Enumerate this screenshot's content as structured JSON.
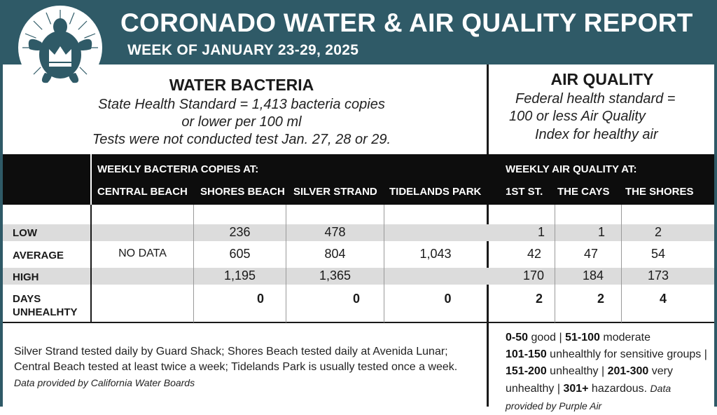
{
  "header": {
    "title": "CORONADO WATER & AIR QUALITY REPORT",
    "subtitle": "WEEK OF JANUARY 23-29, 2025",
    "logo_icon": "turtle-crown-icon",
    "band_color": "#2f5a67"
  },
  "water": {
    "title": "WATER BACTERIA",
    "lines": [
      "State Health Standard  = 1,413 bacteria copies",
      "or lower per 100 ml",
      "Tests were not conducted test Jan. 27, 28 or 29."
    ],
    "group_header": "WEEKLY BACTERIA COPIES AT:",
    "columns": [
      "CENTRAL BEACH",
      "SHORES BEACH",
      "SILVER STRAND",
      "TIDELANDS PARK"
    ],
    "no_data": "NO DATA",
    "rows": {
      "low": [
        "",
        "236",
        "478",
        ""
      ],
      "average": [
        "",
        "605",
        "804",
        "1,043"
      ],
      "high": [
        "",
        "1,195",
        "1,365",
        ""
      ],
      "days": [
        "",
        "0",
        "0",
        "0"
      ]
    },
    "note": "Silver Strand tested daily by Guard Shack; Shores Beach tested daily at Avenida Lunar; Central Beach tested at least twice a week; Tidelands Park is usually tested once a week.",
    "source": "Data provided by California Water Boards"
  },
  "air": {
    "title": "AIR QUALITY",
    "lines": [
      "Federal health standard =",
      "100 or less Air Quality",
      "Index for healthy air"
    ],
    "group_header": "WEEKLY AIR QUALITY AT:",
    "columns": [
      "1ST ST.",
      "THE CAYS",
      "THE SHORES"
    ],
    "rows": {
      "low": [
        "1",
        "1",
        "2"
      ],
      "average": [
        "42",
        "47",
        "54"
      ],
      "high": [
        "170",
        "184",
        "173"
      ],
      "days": [
        "2",
        "2",
        "4"
      ]
    },
    "legend": {
      "r1": "0-50",
      "t1": " good | ",
      "r2": "51-100",
      "t2": " moderate",
      "r3": "101-150",
      "t3": " unhealthly for sensitive groups | ",
      "r4": "151-200",
      "t4": " unhealthy | ",
      "r5": "201-300",
      "t5": " very unhealthy | ",
      "r6": "301+",
      "t6": " hazardous.",
      "source": "Data provided by Purple Air"
    }
  },
  "row_labels": {
    "low": "LOW",
    "average": "AVERAGE",
    "high": "HIGH",
    "days_1": "DAYS",
    "days_2": "UNHEALHTY"
  }
}
